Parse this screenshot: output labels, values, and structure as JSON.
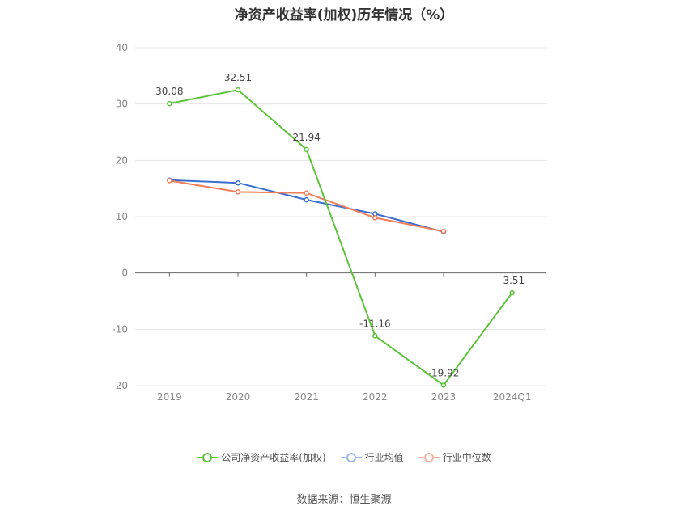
{
  "chart_data": {
    "type": "line",
    "title": "净资产收益率(加权)历年情况（%）",
    "categories": [
      "2019",
      "2020",
      "2021",
      "2022",
      "2023",
      "2024Q1"
    ],
    "ylim": [
      -20,
      40
    ],
    "yticks": [
      -20,
      -10,
      0,
      10,
      20,
      30,
      40
    ],
    "grid": true,
    "legend_position": "bottom",
    "series": [
      {
        "name": "公司净资产收益率(加权)",
        "color": "#5cc43a",
        "values": [
          30.08,
          32.51,
          21.94,
          -11.16,
          -19.92,
          -3.51
        ],
        "labels": [
          "30.08",
          "32.51",
          "21.94",
          "-11.16",
          "-19.92",
          "-3.51"
        ]
      },
      {
        "name": "行业均值",
        "color": "#3a6fd0",
        "values": [
          16.5,
          16.0,
          13.0,
          10.5,
          7.3,
          null
        ]
      },
      {
        "name": "行业中位数",
        "color": "#f07e5c",
        "values": [
          16.4,
          14.4,
          14.2,
          9.8,
          7.4,
          null
        ]
      }
    ],
    "source": "数据来源：恒生聚源"
  }
}
